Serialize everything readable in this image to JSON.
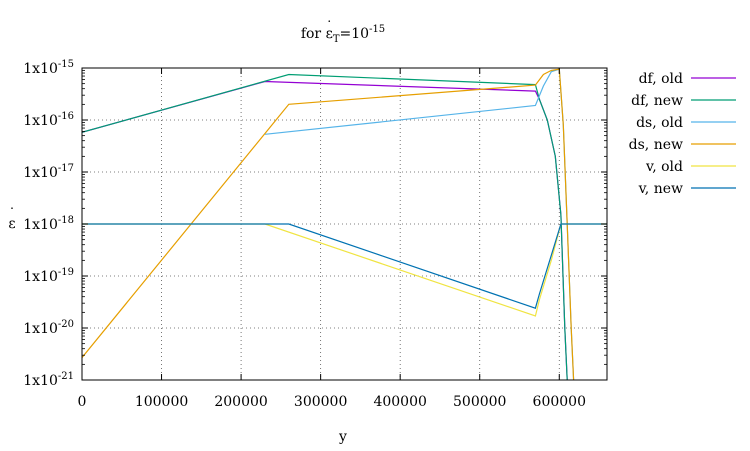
{
  "chart_data": {
    "type": "line",
    "title": {
      "prefix": "for ",
      "symbol": "ε",
      "dot": "˙",
      "subscript": "T",
      "equals": "=10",
      "exponent": "-15"
    },
    "xlabel": "y",
    "ylabel": {
      "symbol": "ε",
      "dot": "˙"
    },
    "xlim": [
      0,
      660000
    ],
    "ylim": [
      1e-21,
      1e-15
    ],
    "yscale": "log",
    "grid": true,
    "legend_position": "outside-right-top",
    "x_ticks": [
      0,
      100000,
      200000,
      300000,
      400000,
      500000,
      600000
    ],
    "x_tick_labels": [
      "0",
      "100000",
      "200000",
      "300000",
      "400000",
      "500000",
      "600000"
    ],
    "y_ticks": [
      1e-21,
      1e-20,
      1e-19,
      1e-18,
      1e-17,
      1e-16,
      1e-15
    ],
    "y_tick_labels": [
      {
        "mant": "1x10",
        "exp": "-21"
      },
      {
        "mant": "1x10",
        "exp": "-20"
      },
      {
        "mant": "1x10",
        "exp": "-19"
      },
      {
        "mant": "1x10",
        "exp": "-18"
      },
      {
        "mant": "1x10",
        "exp": "-17"
      },
      {
        "mant": "1x10",
        "exp": "-16"
      },
      {
        "mant": "1x10",
        "exp": "-15"
      }
    ],
    "series": [
      {
        "name": "df, old",
        "color": "#9400d3",
        "points": [
          [
            0,
            5.8e-17
          ],
          [
            230000,
            5.5e-16
          ],
          [
            570000,
            3.6e-16
          ],
          [
            575000,
            2.5e-16
          ],
          [
            585000,
            1e-16
          ],
          [
            595000,
            2e-17
          ],
          [
            602000,
            1.5e-18
          ],
          [
            607000,
            1e-20
          ],
          [
            610000,
            1e-21
          ]
        ]
      },
      {
        "name": "df, new",
        "color": "#009e73",
        "points": [
          [
            0,
            5.8e-17
          ],
          [
            260000,
            7.5e-16
          ],
          [
            570000,
            4.8e-16
          ],
          [
            575000,
            2.5e-16
          ],
          [
            585000,
            1e-16
          ],
          [
            595000,
            2e-17
          ],
          [
            602000,
            1.5e-18
          ],
          [
            607000,
            1e-20
          ],
          [
            610000,
            1e-21
          ]
        ]
      },
      {
        "name": "ds, old",
        "color": "#56b4e9",
        "points": [
          [
            230000,
            5.3e-17
          ],
          [
            570000,
            1.9e-16
          ],
          [
            580000,
            4.5e-16
          ],
          [
            590000,
            8.5e-16
          ],
          [
            600000,
            9.5e-16
          ],
          [
            605000,
            8e-17
          ],
          [
            610000,
            1e-18
          ],
          [
            615000,
            1e-20
          ],
          [
            618000,
            1e-21
          ]
        ]
      },
      {
        "name": "ds, new",
        "color": "#e69f00",
        "points": [
          [
            0,
            2.7e-21
          ],
          [
            260000,
            2e-16
          ],
          [
            570000,
            4.7e-16
          ],
          [
            580000,
            7.5e-16
          ],
          [
            590000,
            9e-16
          ],
          [
            600000,
            9.5e-16
          ],
          [
            605000,
            8e-17
          ],
          [
            610000,
            1e-18
          ],
          [
            615000,
            1e-20
          ],
          [
            618000,
            1e-21
          ]
        ]
      },
      {
        "name": "v, old",
        "color": "#f0e442",
        "points": [
          [
            0,
            1e-18
          ],
          [
            230000,
            1e-18
          ],
          [
            570000,
            1.7e-20
          ],
          [
            575000,
            3.5e-20
          ],
          [
            590000,
            2e-19
          ],
          [
            602000,
            1e-18
          ],
          [
            660000,
            1e-18
          ]
        ]
      },
      {
        "name": "v, new",
        "color": "#0072b2",
        "points": [
          [
            0,
            1e-18
          ],
          [
            260000,
            1e-18
          ],
          [
            570000,
            2.4e-20
          ],
          [
            575000,
            4.5e-20
          ],
          [
            590000,
            2.5e-19
          ],
          [
            602000,
            1e-18
          ],
          [
            660000,
            1e-18
          ]
        ]
      }
    ]
  }
}
